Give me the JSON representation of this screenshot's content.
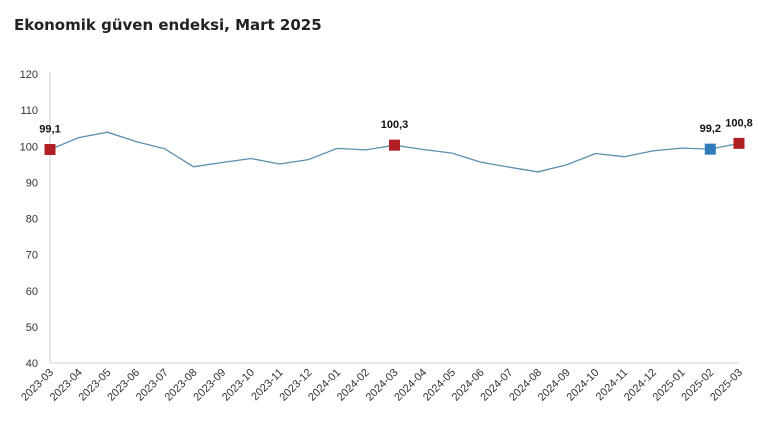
{
  "chart_data": {
    "type": "line",
    "title": "Ekonomik güven endeksi, Mart 2025",
    "xlabel": "",
    "ylabel": "",
    "ylim": [
      40,
      120
    ],
    "yticks": [
      40,
      50,
      60,
      70,
      80,
      90,
      100,
      110,
      120
    ],
    "grid": false,
    "categories": [
      "2023-03",
      "2023-04",
      "2023-05",
      "2023-06",
      "2023-07",
      "2023-08",
      "2023-09",
      "2023-10",
      "2023-11",
      "2023-12",
      "2024-01",
      "2024-02",
      "2024-03",
      "2024-04",
      "2024-05",
      "2024-06",
      "2024-07",
      "2024-08",
      "2024-09",
      "2024-10",
      "2024-11",
      "2024-12",
      "2025-01",
      "2025-02",
      "2025-03"
    ],
    "series": [
      {
        "values": [
          99.1,
          102.4,
          103.9,
          101.3,
          99.3,
          94.3,
          95.5,
          96.6,
          95.1,
          96.3,
          99.4,
          99.0,
          100.3,
          99.1,
          98.1,
          95.6,
          94.2,
          92.9,
          94.9,
          98.0,
          97.1,
          98.7,
          99.5,
          99.2,
          100.8
        ],
        "color": "#5b8fae"
      }
    ],
    "markers": [
      {
        "index": 0,
        "label": "99,1",
        "color": "#b01f24"
      },
      {
        "index": 12,
        "label": "100,3",
        "color": "#b01f24"
      },
      {
        "index": 23,
        "label": "99,2",
        "color": "#2f7ab8"
      },
      {
        "index": 24,
        "label": "100,8",
        "color": "#b01f24"
      }
    ]
  }
}
